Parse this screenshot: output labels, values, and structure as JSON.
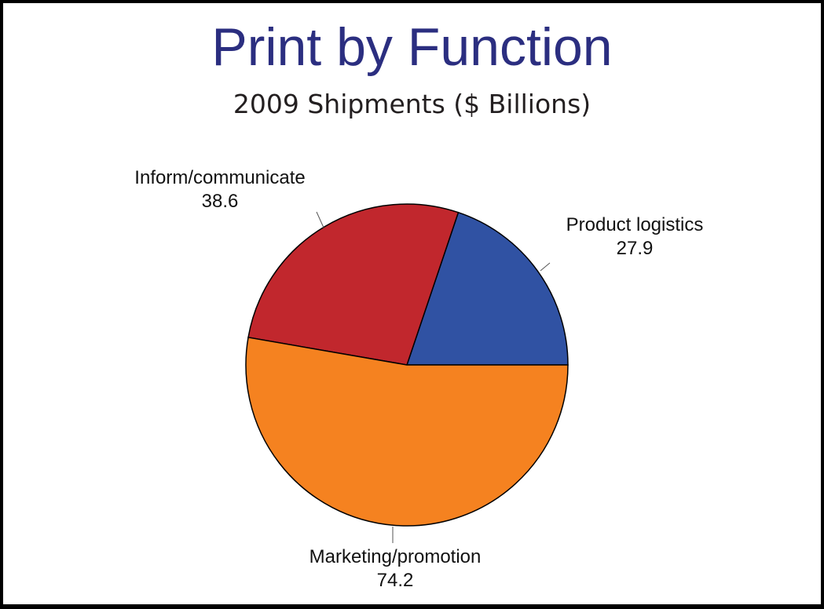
{
  "chart_data": {
    "type": "pie",
    "title": "Print by Function",
    "subtitle": "2009 Shipments ($ Billions)",
    "slices": [
      {
        "label": "Product logistics",
        "value": 27.9,
        "value_label": "27.9",
        "color": "#3052a3"
      },
      {
        "label": "Inform/communicate",
        "value": 38.6,
        "value_label": "38.6",
        "color": "#c1272d"
      },
      {
        "label": "Marketing/promotion",
        "value": 74.2,
        "value_label": "74.2",
        "color": "#f58220"
      }
    ],
    "start_angle": "3 o'clock",
    "direction": "counterclockwise",
    "legend": "none (direct labels)"
  }
}
